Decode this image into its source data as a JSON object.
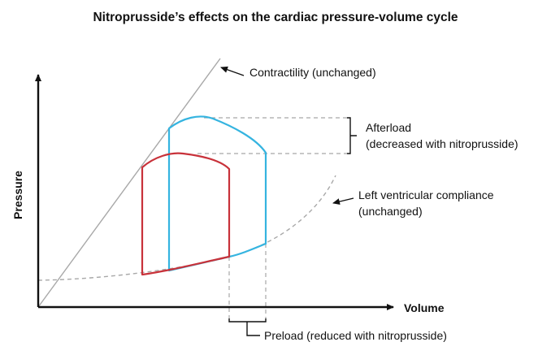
{
  "title": "Nitroprusside’s effects on the cardiac pressure-volume cycle",
  "axes": {
    "x_label": "Volume",
    "y_label": "Pressure"
  },
  "annotations": {
    "contractility": "Contractility (unchanged)",
    "afterload_line1": "Afterload",
    "afterload_line2": "(decreased with nitroprusside)",
    "compliance_line1": "Left ventricular compliance",
    "compliance_line2": "(unchanged)",
    "preload": "Preload (reduced with nitroprusside)"
  },
  "colors": {
    "baseline_loop": "#35b4e0",
    "nitroprusside_loop": "#c8323a",
    "guide_lines": "#a8a8a8",
    "axes": "#111111"
  }
}
